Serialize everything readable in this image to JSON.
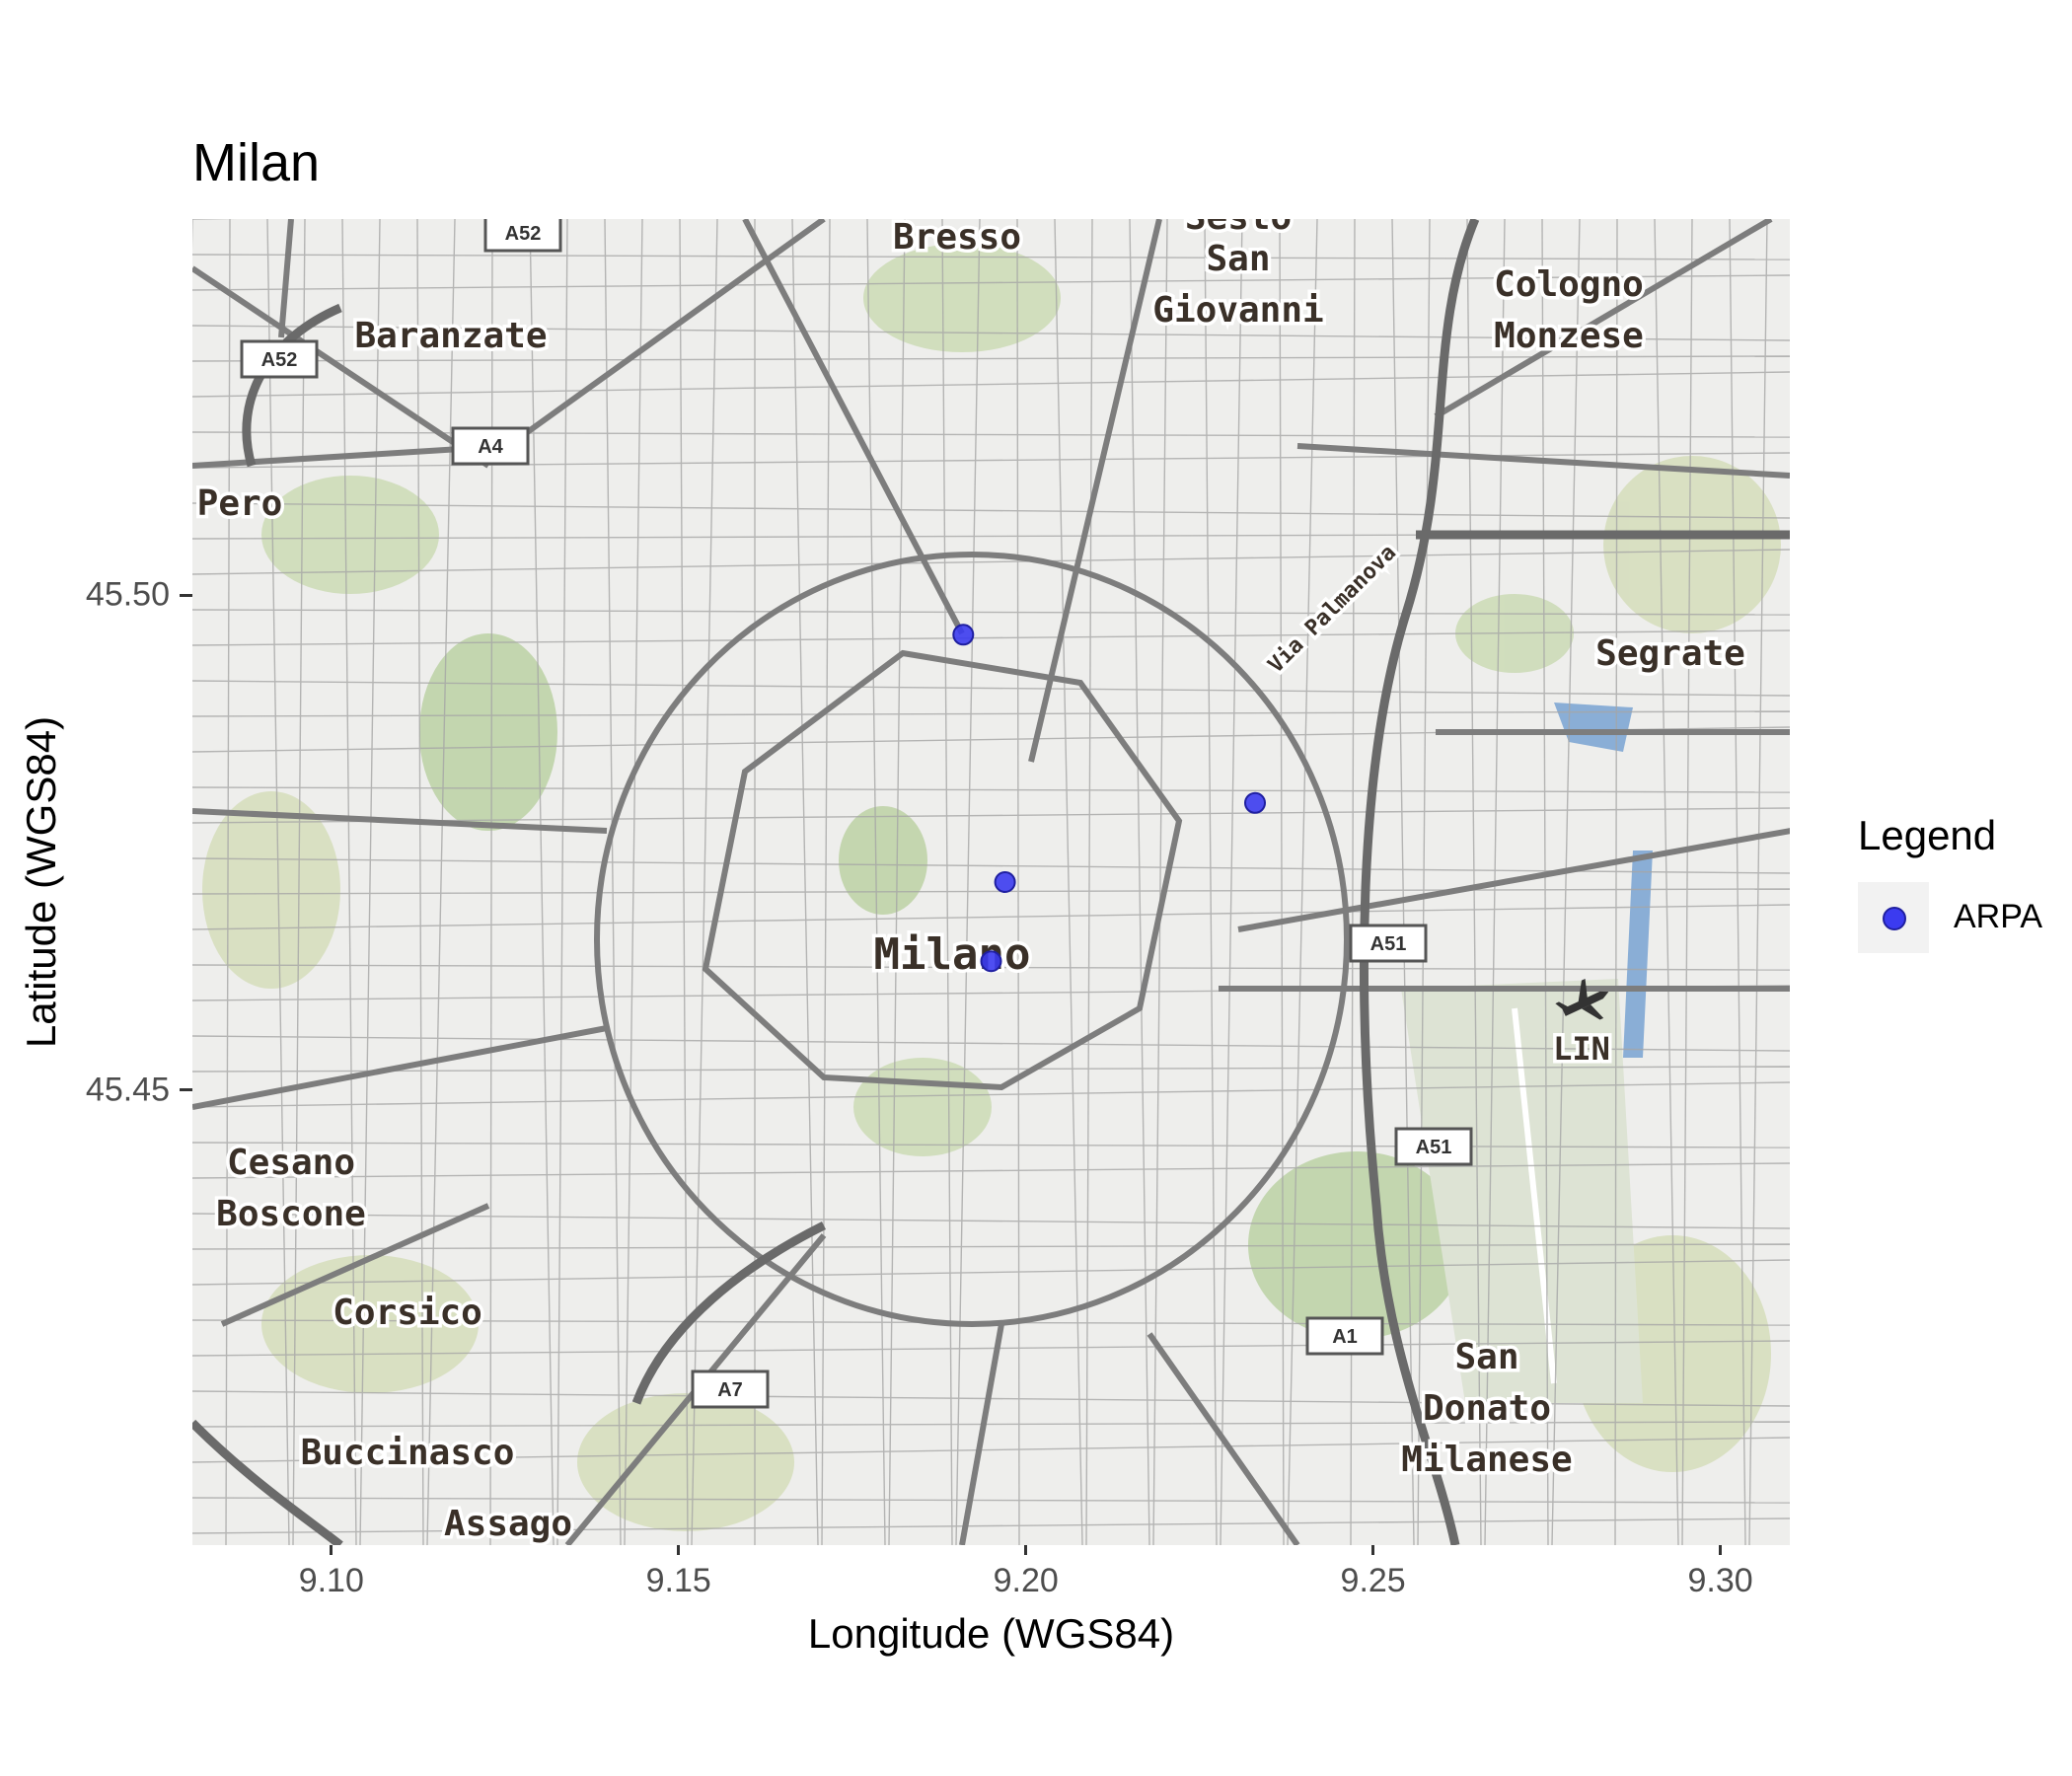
{
  "title": "Milan",
  "axes": {
    "x_label": "Longitude (WGS84)",
    "y_label": "Latitude (WGS84)",
    "x_ticks": [
      "9.10",
      "9.15",
      "9.20",
      "9.25",
      "9.30"
    ],
    "y_ticks": [
      "45.45",
      "45.50"
    ]
  },
  "legend": {
    "title": "Legend",
    "items": [
      {
        "label": "ARPA",
        "color": "#3b3bf0"
      }
    ]
  },
  "map": {
    "basemap": "street map tiles",
    "place_labels": [
      {
        "text": "Bresso"
      },
      {
        "text": "Sesto"
      },
      {
        "text": "San"
      },
      {
        "text": "Giovanni"
      },
      {
        "text": "Cologno"
      },
      {
        "text": "Monzese"
      },
      {
        "text": "Baranzate"
      },
      {
        "text": "Pero"
      },
      {
        "text": "Segrate"
      },
      {
        "text": "Milano"
      },
      {
        "text": "LIN"
      },
      {
        "text": "Cesano"
      },
      {
        "text": "Boscone"
      },
      {
        "text": "Corsico"
      },
      {
        "text": "Buccinasco"
      },
      {
        "text": "Assago"
      },
      {
        "text": "San"
      },
      {
        "text": "Donato"
      },
      {
        "text": "Milanese"
      },
      {
        "text": "Via Palmanova"
      }
    ],
    "road_shields": [
      "A52",
      "A52",
      "A4",
      "A51",
      "A51",
      "A1",
      "A7"
    ]
  },
  "chart_data": {
    "type": "scatter",
    "title": "Milan",
    "xlabel": "Longitude (WGS84)",
    "ylabel": "Latitude (WGS84)",
    "xlim": [
      9.08,
      9.31
    ],
    "ylim": [
      45.404,
      45.538
    ],
    "series": [
      {
        "name": "ARPA",
        "color": "#3b3bf0",
        "points": [
          {
            "x": 9.191,
            "y": 45.496
          },
          {
            "x": 9.233,
            "y": 45.479
          },
          {
            "x": 9.197,
            "y": 45.471
          },
          {
            "x": 9.195,
            "y": 45.463
          }
        ]
      }
    ]
  }
}
